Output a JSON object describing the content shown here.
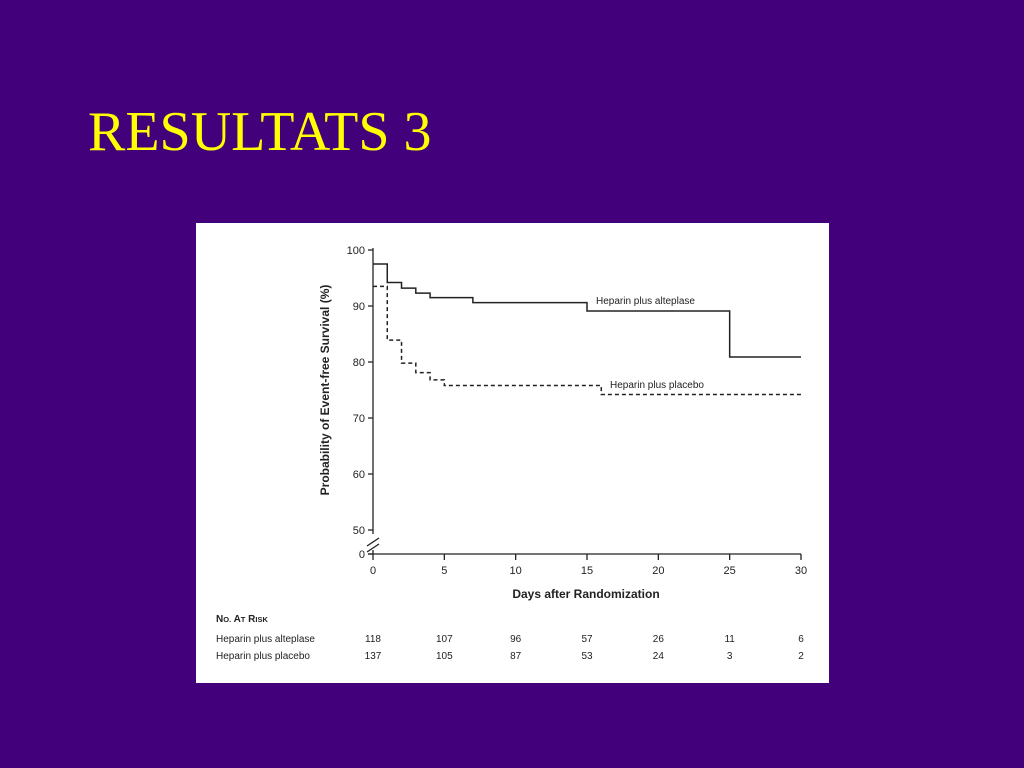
{
  "slide": {
    "title": "RESULTATS 3",
    "background_color": "#42007a",
    "title_color": "#ffff00"
  },
  "chart_data": {
    "type": "line",
    "step": true,
    "title": "",
    "xlabel": "Days after Randomization",
    "ylabel": "Probability of Event-free Survival (%)",
    "xlim": [
      0,
      30
    ],
    "ylim": [
      50,
      100
    ],
    "y_axis_break": true,
    "x_ticks": [
      "0",
      "5",
      "10",
      "15",
      "20",
      "25",
      "30"
    ],
    "y_ticks": [
      "100",
      "90",
      "80",
      "70",
      "60",
      "50"
    ],
    "y_zero_label": "0",
    "grid": false,
    "series": [
      {
        "name": "Heparin plus alteplase",
        "line_style": "solid",
        "x": [
          0,
          1,
          2,
          3,
          4,
          7,
          15,
          25,
          30
        ],
        "y": [
          97.5,
          94.2,
          93.2,
          92.3,
          91.5,
          90.6,
          89.1,
          80.9,
          80.9
        ]
      },
      {
        "name": "Heparin plus placebo",
        "line_style": "dashed",
        "x": [
          0,
          1,
          2,
          3,
          4,
          5,
          16,
          30
        ],
        "y": [
          93.5,
          83.9,
          79.8,
          78.1,
          76.8,
          75.8,
          74.2,
          74.2
        ]
      }
    ],
    "number_at_risk": {
      "header": "No. at Risk",
      "x": [
        0,
        5,
        10,
        15,
        20,
        25,
        30
      ],
      "rows": [
        {
          "label": "Heparin plus alteplase",
          "values": [
            "118",
            "107",
            "96",
            "57",
            "26",
            "11",
            "6"
          ]
        },
        {
          "label": "Heparin plus placebo",
          "values": [
            "137",
            "105",
            "87",
            "53",
            "24",
            "3",
            "2"
          ]
        }
      ]
    }
  }
}
